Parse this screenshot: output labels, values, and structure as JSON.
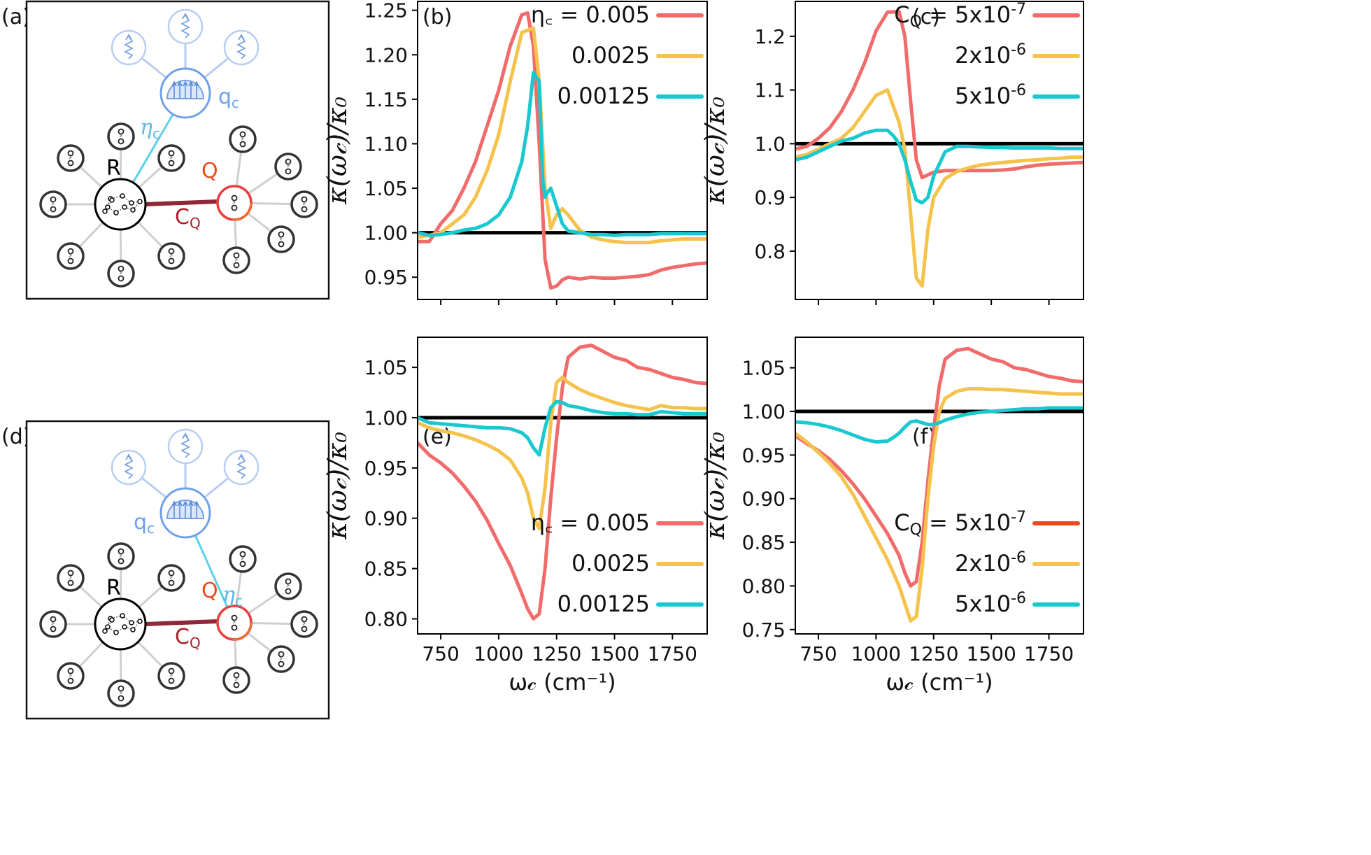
{
  "panel_labels": {
    "a": "(a)",
    "b": "(b)",
    "c": "(c)",
    "d": "(d)",
    "e": "(e)",
    "f": "(f)"
  },
  "colors": {
    "red": "#f26b6b",
    "yellow": "#f5c24c",
    "cyan": "#19c9d0",
    "black": "#000000",
    "bond": "#8f2838",
    "light_blue": "#8eb0ec",
    "qc_blue": "#6fa0ea",
    "coupling_cyan": "#5bd0ea",
    "q_orange": "#ec4a1c",
    "cq_red": "#b01c28"
  },
  "diagram_labels": {
    "R": "R",
    "Q": "Q",
    "CQ": "C",
    "CQ_sub": "Q",
    "qc": "q",
    "qc_sub": "c",
    "eta": "η",
    "eta_sub": "c"
  },
  "axis": {
    "ylabel": "κ(ω𝒸)/κ₀",
    "xlabel": "ω𝒸 (cm⁻¹)"
  },
  "chart_data": [
    {
      "panel": "b",
      "type": "line",
      "xlim": [
        650,
        1900
      ],
      "ylim": [
        0.925,
        1.26
      ],
      "yticks": [
        "0.95",
        "1.00",
        "1.05",
        "1.10",
        "1.15",
        "1.20",
        "1.25"
      ],
      "xticks_shown": false,
      "legend_position": "top-right",
      "reference_line": 1.0,
      "series": [
        {
          "name": "η꜀ = 0.005",
          "color": "#f26b6b",
          "x": [
            650,
            700,
            750,
            800,
            850,
            900,
            950,
            1000,
            1050,
            1100,
            1125,
            1150,
            1175,
            1200,
            1225,
            1250,
            1275,
            1300,
            1350,
            1400,
            1450,
            1500,
            1550,
            1600,
            1650,
            1700,
            1750,
            1800,
            1850,
            1900
          ],
          "y": [
            0.99,
            0.99,
            1.01,
            1.025,
            1.05,
            1.08,
            1.12,
            1.16,
            1.21,
            1.245,
            1.247,
            1.21,
            1.1,
            0.97,
            0.938,
            0.94,
            0.947,
            0.95,
            0.948,
            0.95,
            0.949,
            0.949,
            0.95,
            0.951,
            0.953,
            0.958,
            0.961,
            0.963,
            0.965,
            0.966
          ]
        },
        {
          "name": "0.0025",
          "color": "#f5c24c",
          "x": [
            650,
            700,
            750,
            800,
            850,
            900,
            950,
            1000,
            1050,
            1100,
            1150,
            1175,
            1200,
            1225,
            1250,
            1275,
            1300,
            1350,
            1400,
            1450,
            1500,
            1550,
            1600,
            1650,
            1700,
            1750,
            1800,
            1850,
            1900
          ],
          "y": [
            0.995,
            0.997,
            1.0,
            1.01,
            1.02,
            1.04,
            1.07,
            1.11,
            1.17,
            1.225,
            1.23,
            1.17,
            1.05,
            1.005,
            1.02,
            1.027,
            1.02,
            1.003,
            0.995,
            0.992,
            0.99,
            0.989,
            0.989,
            0.989,
            0.991,
            0.992,
            0.993,
            0.993,
            0.993
          ]
        },
        {
          "name": "0.00125",
          "color": "#19c9d0",
          "x": [
            650,
            700,
            750,
            800,
            850,
            900,
            950,
            1000,
            1050,
            1100,
            1125,
            1150,
            1175,
            1190,
            1200,
            1210,
            1225,
            1250,
            1275,
            1300,
            1350,
            1400,
            1450,
            1500,
            1550,
            1600,
            1650,
            1700,
            1750,
            1800,
            1850,
            1900
          ],
          "y": [
            1.0,
            0.997,
            0.998,
            1.0,
            1.003,
            1.005,
            1.01,
            1.02,
            1.04,
            1.08,
            1.12,
            1.18,
            1.17,
            1.06,
            1.04,
            1.045,
            1.05,
            1.03,
            1.01,
            1.002,
            1.0,
            0.998,
            0.998,
            0.997,
            0.998,
            0.998,
            0.998,
            0.999,
            0.999,
            0.999,
            0.999,
            0.999
          ]
        }
      ]
    },
    {
      "panel": "c",
      "type": "line",
      "xlim": [
        650,
        1900
      ],
      "ylim": [
        0.71,
        1.265
      ],
      "yticks": [
        "0.8",
        "0.9",
        "1.0",
        "1.1",
        "1.2"
      ],
      "xticks_shown": false,
      "legend_position": "top-right",
      "reference_line": 1.0,
      "series": [
        {
          "name": "C = 5x10",
          "name_sub": "Q",
          "name_sup": "-7",
          "color": "#f26b6b",
          "x": [
            650,
            700,
            750,
            800,
            850,
            900,
            950,
            1000,
            1050,
            1100,
            1125,
            1150,
            1175,
            1200,
            1250,
            1300,
            1350,
            1400,
            1450,
            1500,
            1550,
            1600,
            1650,
            1700,
            1750,
            1800,
            1850,
            1900
          ],
          "y": [
            0.99,
            0.995,
            1.01,
            1.03,
            1.06,
            1.1,
            1.15,
            1.21,
            1.245,
            1.246,
            1.2,
            1.08,
            0.97,
            0.937,
            0.947,
            0.95,
            0.95,
            0.95,
            0.95,
            0.95,
            0.951,
            0.953,
            0.957,
            0.96,
            0.962,
            0.963,
            0.964,
            0.965
          ]
        },
        {
          "name": "2x10",
          "name_sup": "-6",
          "color": "#f5c24c",
          "x": [
            650,
            700,
            750,
            800,
            850,
            900,
            950,
            1000,
            1050,
            1100,
            1125,
            1150,
            1175,
            1200,
            1225,
            1250,
            1300,
            1350,
            1400,
            1450,
            1500,
            1550,
            1600,
            1650,
            1700,
            1750,
            1800,
            1850,
            1900
          ],
          "y": [
            0.975,
            0.98,
            0.99,
            1.0,
            1.01,
            1.03,
            1.06,
            1.09,
            1.1,
            1.04,
            0.99,
            0.87,
            0.75,
            0.735,
            0.84,
            0.9,
            0.935,
            0.948,
            0.955,
            0.96,
            0.963,
            0.965,
            0.967,
            0.969,
            0.97,
            0.972,
            0.973,
            0.975,
            0.975
          ]
        },
        {
          "name": "5x10",
          "name_sup": "-6",
          "color": "#19c9d0",
          "x": [
            650,
            700,
            750,
            800,
            850,
            900,
            950,
            1000,
            1050,
            1075,
            1100,
            1125,
            1150,
            1175,
            1200,
            1225,
            1250,
            1300,
            1350,
            1400,
            1450,
            1500,
            1550,
            1600,
            1650,
            1700,
            1750,
            1800,
            1850,
            1900
          ],
          "y": [
            0.97,
            0.975,
            0.985,
            0.995,
            1.005,
            1.01,
            1.02,
            1.025,
            1.025,
            1.015,
            1.0,
            0.97,
            0.93,
            0.895,
            0.89,
            0.9,
            0.94,
            0.985,
            0.995,
            0.995,
            0.994,
            0.993,
            0.993,
            0.992,
            0.992,
            0.992,
            0.992,
            0.991,
            0.991,
            0.991
          ]
        }
      ]
    },
    {
      "panel": "e",
      "type": "line",
      "xlim": [
        650,
        1900
      ],
      "ylim": [
        0.785,
        1.08
      ],
      "xticks": [
        "750",
        "1000",
        "1250",
        "1500",
        "1750"
      ],
      "yticks": [
        "0.80",
        "0.85",
        "0.90",
        "0.95",
        "1.00",
        "1.05"
      ],
      "legend_position": "bottom-right",
      "reference_line": 1.0,
      "series": [
        {
          "name": "η꜀ = 0.005",
          "color": "#f26b6b",
          "x": [
            650,
            700,
            750,
            800,
            850,
            900,
            950,
            1000,
            1050,
            1100,
            1125,
            1150,
            1175,
            1200,
            1225,
            1250,
            1275,
            1300,
            1350,
            1400,
            1450,
            1500,
            1550,
            1600,
            1650,
            1700,
            1750,
            1800,
            1850,
            1900
          ],
          "y": [
            0.975,
            0.963,
            0.955,
            0.945,
            0.932,
            0.917,
            0.898,
            0.875,
            0.853,
            0.825,
            0.81,
            0.8,
            0.805,
            0.85,
            0.92,
            0.98,
            1.03,
            1.06,
            1.07,
            1.072,
            1.066,
            1.06,
            1.057,
            1.05,
            1.048,
            1.044,
            1.04,
            1.038,
            1.035,
            1.034
          ]
        },
        {
          "name": "0.0025",
          "color": "#f5c24c",
          "x": [
            650,
            700,
            750,
            800,
            850,
            900,
            950,
            1000,
            1050,
            1100,
            1125,
            1150,
            1175,
            1200,
            1225,
            1250,
            1275,
            1300,
            1350,
            1400,
            1450,
            1500,
            1550,
            1600,
            1650,
            1700,
            1750,
            1800,
            1850,
            1900
          ],
          "y": [
            0.995,
            0.99,
            0.987,
            0.985,
            0.982,
            0.978,
            0.973,
            0.967,
            0.958,
            0.94,
            0.925,
            0.9,
            0.89,
            0.93,
            0.995,
            1.035,
            1.04,
            1.035,
            1.028,
            1.023,
            1.019,
            1.015,
            1.012,
            1.01,
            1.008,
            1.012,
            1.01,
            1.01,
            1.009,
            1.009
          ]
        },
        {
          "name": "0.00125",
          "color": "#19c9d0",
          "x": [
            650,
            700,
            750,
            800,
            850,
            900,
            950,
            1000,
            1050,
            1100,
            1125,
            1150,
            1175,
            1200,
            1225,
            1250,
            1275,
            1300,
            1350,
            1400,
            1450,
            1500,
            1550,
            1600,
            1650,
            1700,
            1750,
            1800,
            1850,
            1900
          ],
          "y": [
            1.0,
            0.995,
            0.994,
            0.993,
            0.992,
            0.991,
            0.99,
            0.99,
            0.989,
            0.985,
            0.98,
            0.97,
            0.963,
            0.99,
            1.01,
            1.016,
            1.015,
            1.012,
            1.01,
            1.007,
            1.005,
            1.004,
            1.004,
            1.003,
            1.003,
            1.006,
            1.005,
            1.004,
            1.004,
            1.004
          ]
        }
      ]
    },
    {
      "panel": "f",
      "type": "line",
      "xlim": [
        650,
        1900
      ],
      "ylim": [
        0.745,
        1.085
      ],
      "xticks": [
        "750",
        "1000",
        "1250",
        "1500",
        "1750"
      ],
      "yticks": [
        "0.75",
        "0.80",
        "0.85",
        "0.90",
        "0.95",
        "1.00",
        "1.05"
      ],
      "legend_position": "bottom-right",
      "reference_line": 1.0,
      "series": [
        {
          "name": "C = 5x10",
          "name_sub": "Q",
          "name_sup": "-7",
          "color": "#f26b6b",
          "legend_color": "#ec4a1c",
          "x": [
            650,
            700,
            750,
            800,
            850,
            900,
            950,
            1000,
            1050,
            1100,
            1125,
            1150,
            1175,
            1200,
            1225,
            1250,
            1275,
            1300,
            1350,
            1400,
            1450,
            1500,
            1550,
            1600,
            1650,
            1700,
            1750,
            1800,
            1850,
            1900
          ],
          "y": [
            0.972,
            0.963,
            0.955,
            0.945,
            0.932,
            0.917,
            0.9,
            0.88,
            0.86,
            0.835,
            0.815,
            0.8,
            0.805,
            0.85,
            0.92,
            0.98,
            1.03,
            1.06,
            1.07,
            1.072,
            1.066,
            1.06,
            1.057,
            1.05,
            1.048,
            1.044,
            1.04,
            1.038,
            1.035,
            1.034
          ]
        },
        {
          "name": "2x10",
          "name_sup": "-6",
          "color": "#f5c24c",
          "x": [
            650,
            700,
            750,
            800,
            850,
            900,
            950,
            1000,
            1050,
            1100,
            1125,
            1150,
            1175,
            1200,
            1225,
            1250,
            1275,
            1300,
            1350,
            1400,
            1450,
            1500,
            1550,
            1600,
            1650,
            1700,
            1750,
            1800,
            1850,
            1900
          ],
          "y": [
            0.975,
            0.965,
            0.953,
            0.94,
            0.925,
            0.905,
            0.88,
            0.855,
            0.83,
            0.8,
            0.78,
            0.76,
            0.765,
            0.82,
            0.9,
            0.96,
            1.0,
            1.015,
            1.023,
            1.026,
            1.026,
            1.025,
            1.025,
            1.024,
            1.023,
            1.022,
            1.021,
            1.02,
            1.02,
            1.02
          ]
        },
        {
          "name": "5x10",
          "name_sup": "-6",
          "color": "#19c9d0",
          "x": [
            650,
            700,
            750,
            800,
            850,
            900,
            950,
            1000,
            1050,
            1075,
            1100,
            1125,
            1150,
            1175,
            1200,
            1225,
            1250,
            1275,
            1300,
            1350,
            1400,
            1450,
            1500,
            1550,
            1600,
            1650,
            1700,
            1750,
            1800,
            1850,
            1900
          ],
          "y": [
            0.988,
            0.987,
            0.985,
            0.982,
            0.978,
            0.973,
            0.968,
            0.965,
            0.966,
            0.97,
            0.975,
            0.982,
            0.988,
            0.989,
            0.987,
            0.985,
            0.985,
            0.987,
            0.99,
            0.994,
            0.997,
            0.999,
            1.0,
            1.001,
            1.002,
            1.003,
            1.003,
            1.004,
            1.004,
            1.004,
            1.004
          ]
        }
      ]
    }
  ]
}
